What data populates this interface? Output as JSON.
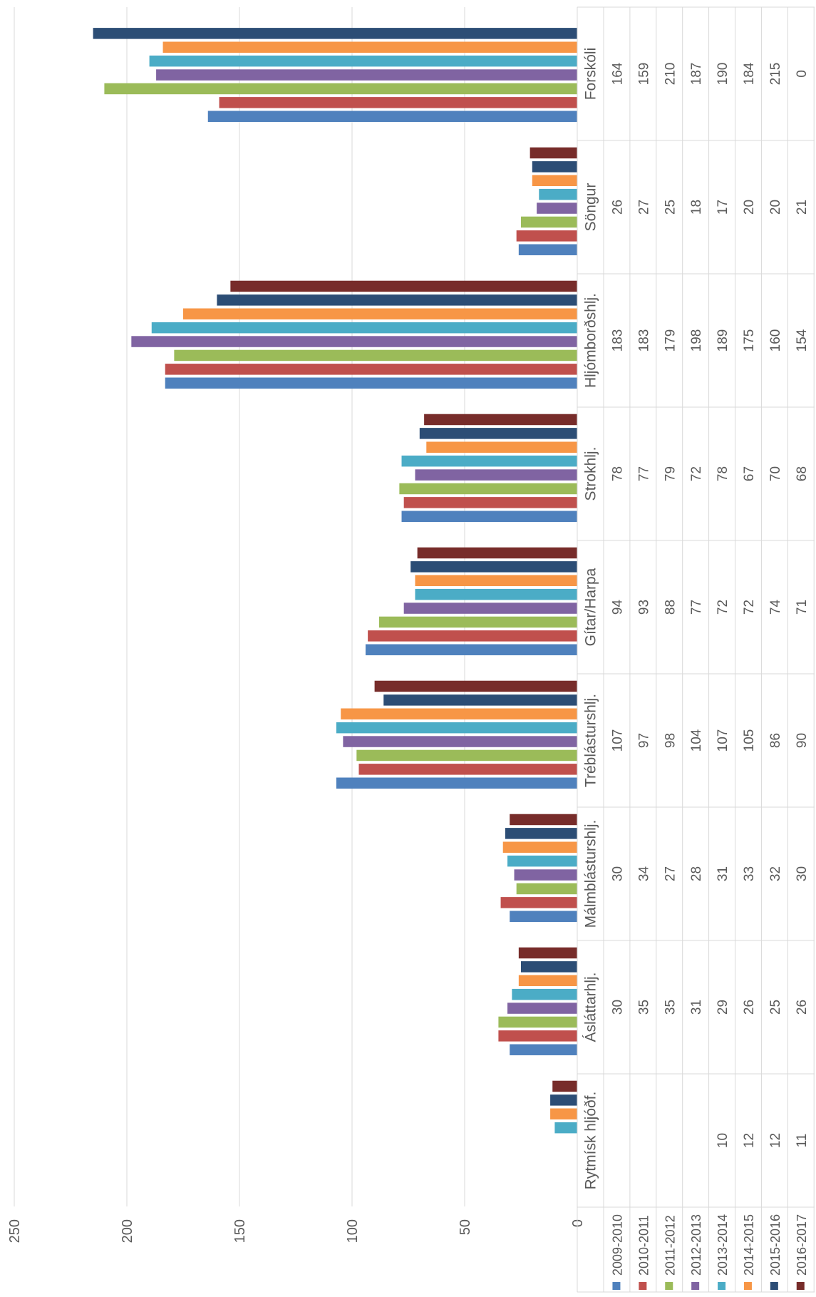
{
  "chart_data": {
    "type": "bar",
    "orientation": "horizontal-rotated",
    "categories": [
      "Forskóli",
      "Söngur",
      "Hljómborðshlj.",
      "Strokhlj.",
      "Gítar/Harpa",
      "Tréblásturshlj.",
      "Málmblásturshlj.",
      "Ásláttarhlj.",
      "Rytmísk hljóðf."
    ],
    "series": [
      {
        "name": "2009-2010",
        "color": "#4F81BD",
        "values": [
          164,
          26,
          183,
          78,
          94,
          107,
          30,
          30,
          null
        ]
      },
      {
        "name": "2010-2011",
        "color": "#C0504D",
        "values": [
          159,
          27,
          183,
          77,
          93,
          97,
          34,
          35,
          null
        ]
      },
      {
        "name": "2011-2012",
        "color": "#9BBB59",
        "values": [
          210,
          25,
          179,
          79,
          88,
          98,
          27,
          35,
          null
        ]
      },
      {
        "name": "2012-2013",
        "color": "#8064A2",
        "values": [
          187,
          18,
          198,
          72,
          77,
          104,
          28,
          31,
          null
        ]
      },
      {
        "name": "2013-2014",
        "color": "#4BACC6",
        "values": [
          190,
          17,
          189,
          78,
          72,
          107,
          31,
          29,
          10
        ]
      },
      {
        "name": "2014-2015",
        "color": "#F79646",
        "values": [
          184,
          20,
          175,
          67,
          72,
          105,
          33,
          26,
          12
        ]
      },
      {
        "name": "2015-2016",
        "color": "#2C4D75",
        "values": [
          215,
          20,
          160,
          70,
          74,
          86,
          32,
          25,
          12
        ]
      },
      {
        "name": "2016-2017",
        "color": "#772C2A",
        "values": [
          0,
          21,
          154,
          68,
          71,
          90,
          30,
          26,
          11
        ]
      }
    ],
    "axis_ticks": [
      "0",
      "50",
      "100",
      "150",
      "200",
      "250"
    ],
    "ylim": [
      0,
      250
    ],
    "grid": true,
    "legend": "bottom data table",
    "title": "",
    "xlabel": "",
    "ylabel": ""
  }
}
